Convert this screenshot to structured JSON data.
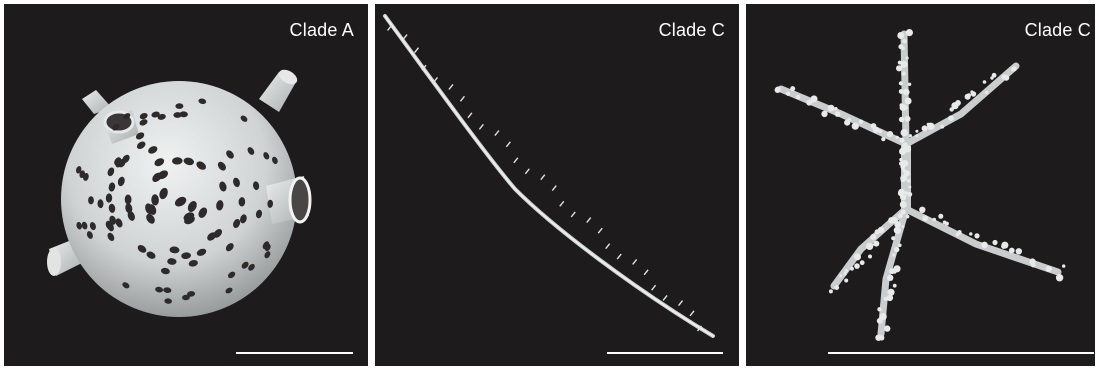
{
  "panels": [
    {
      "label": "Clade A",
      "specimen": "perforated-spherical-shell"
    },
    {
      "label": "Clade C",
      "specimen": "needle-spicule"
    },
    {
      "label": "Clade C",
      "specimen": "branched-spicule"
    }
  ],
  "colors": {
    "background": "#1e1b1c",
    "specimen": "#d9dcdc",
    "text": "#ffffff"
  }
}
